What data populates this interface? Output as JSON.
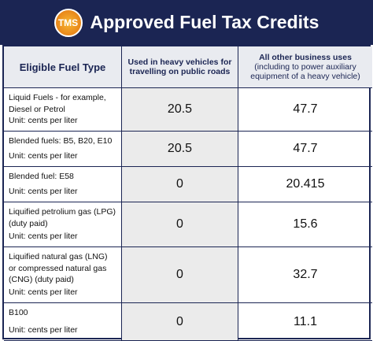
{
  "header": {
    "logo": "TMS",
    "title": "Approved Fuel Tax Credits"
  },
  "table": {
    "columns": [
      {
        "title": "Eligible Fuel Type"
      },
      {
        "title": "Used in heavy vehicles for travelling on public roads"
      },
      {
        "title": "All other business uses",
        "note": "(including to power auxiliary equipment of a heavy vehicle)"
      }
    ],
    "rows": [
      {
        "fuel": "Liquid Fuels -  for example, Diesel or Petrol",
        "unit": "Unit: cents per liter",
        "heavy": 20.5,
        "other": 47.7
      },
      {
        "fuel": "Blended fuels: B5, B20, E10",
        "unit": "Unit: cents per liter",
        "heavy": 20.5,
        "other": 47.7
      },
      {
        "fuel": "Blended fuel: E58",
        "unit": "Unit: cents per liter",
        "heavy": 0,
        "other": 20.415
      },
      {
        "fuel": "Liquified petrolium gas (LPG) (duty paid)",
        "unit": "Unit: cents per liter",
        "heavy": 0,
        "other": 15.6
      },
      {
        "fuel": "Liquified natural gas (LNG) or compressed natural gas (CNG) (duty paid)",
        "unit": "Unit: cents per liter",
        "heavy": 0,
        "other": 32.7
      },
      {
        "fuel": "B100",
        "unit": "Unit: cents per liter",
        "heavy": 0,
        "other": 11.1
      }
    ]
  }
}
